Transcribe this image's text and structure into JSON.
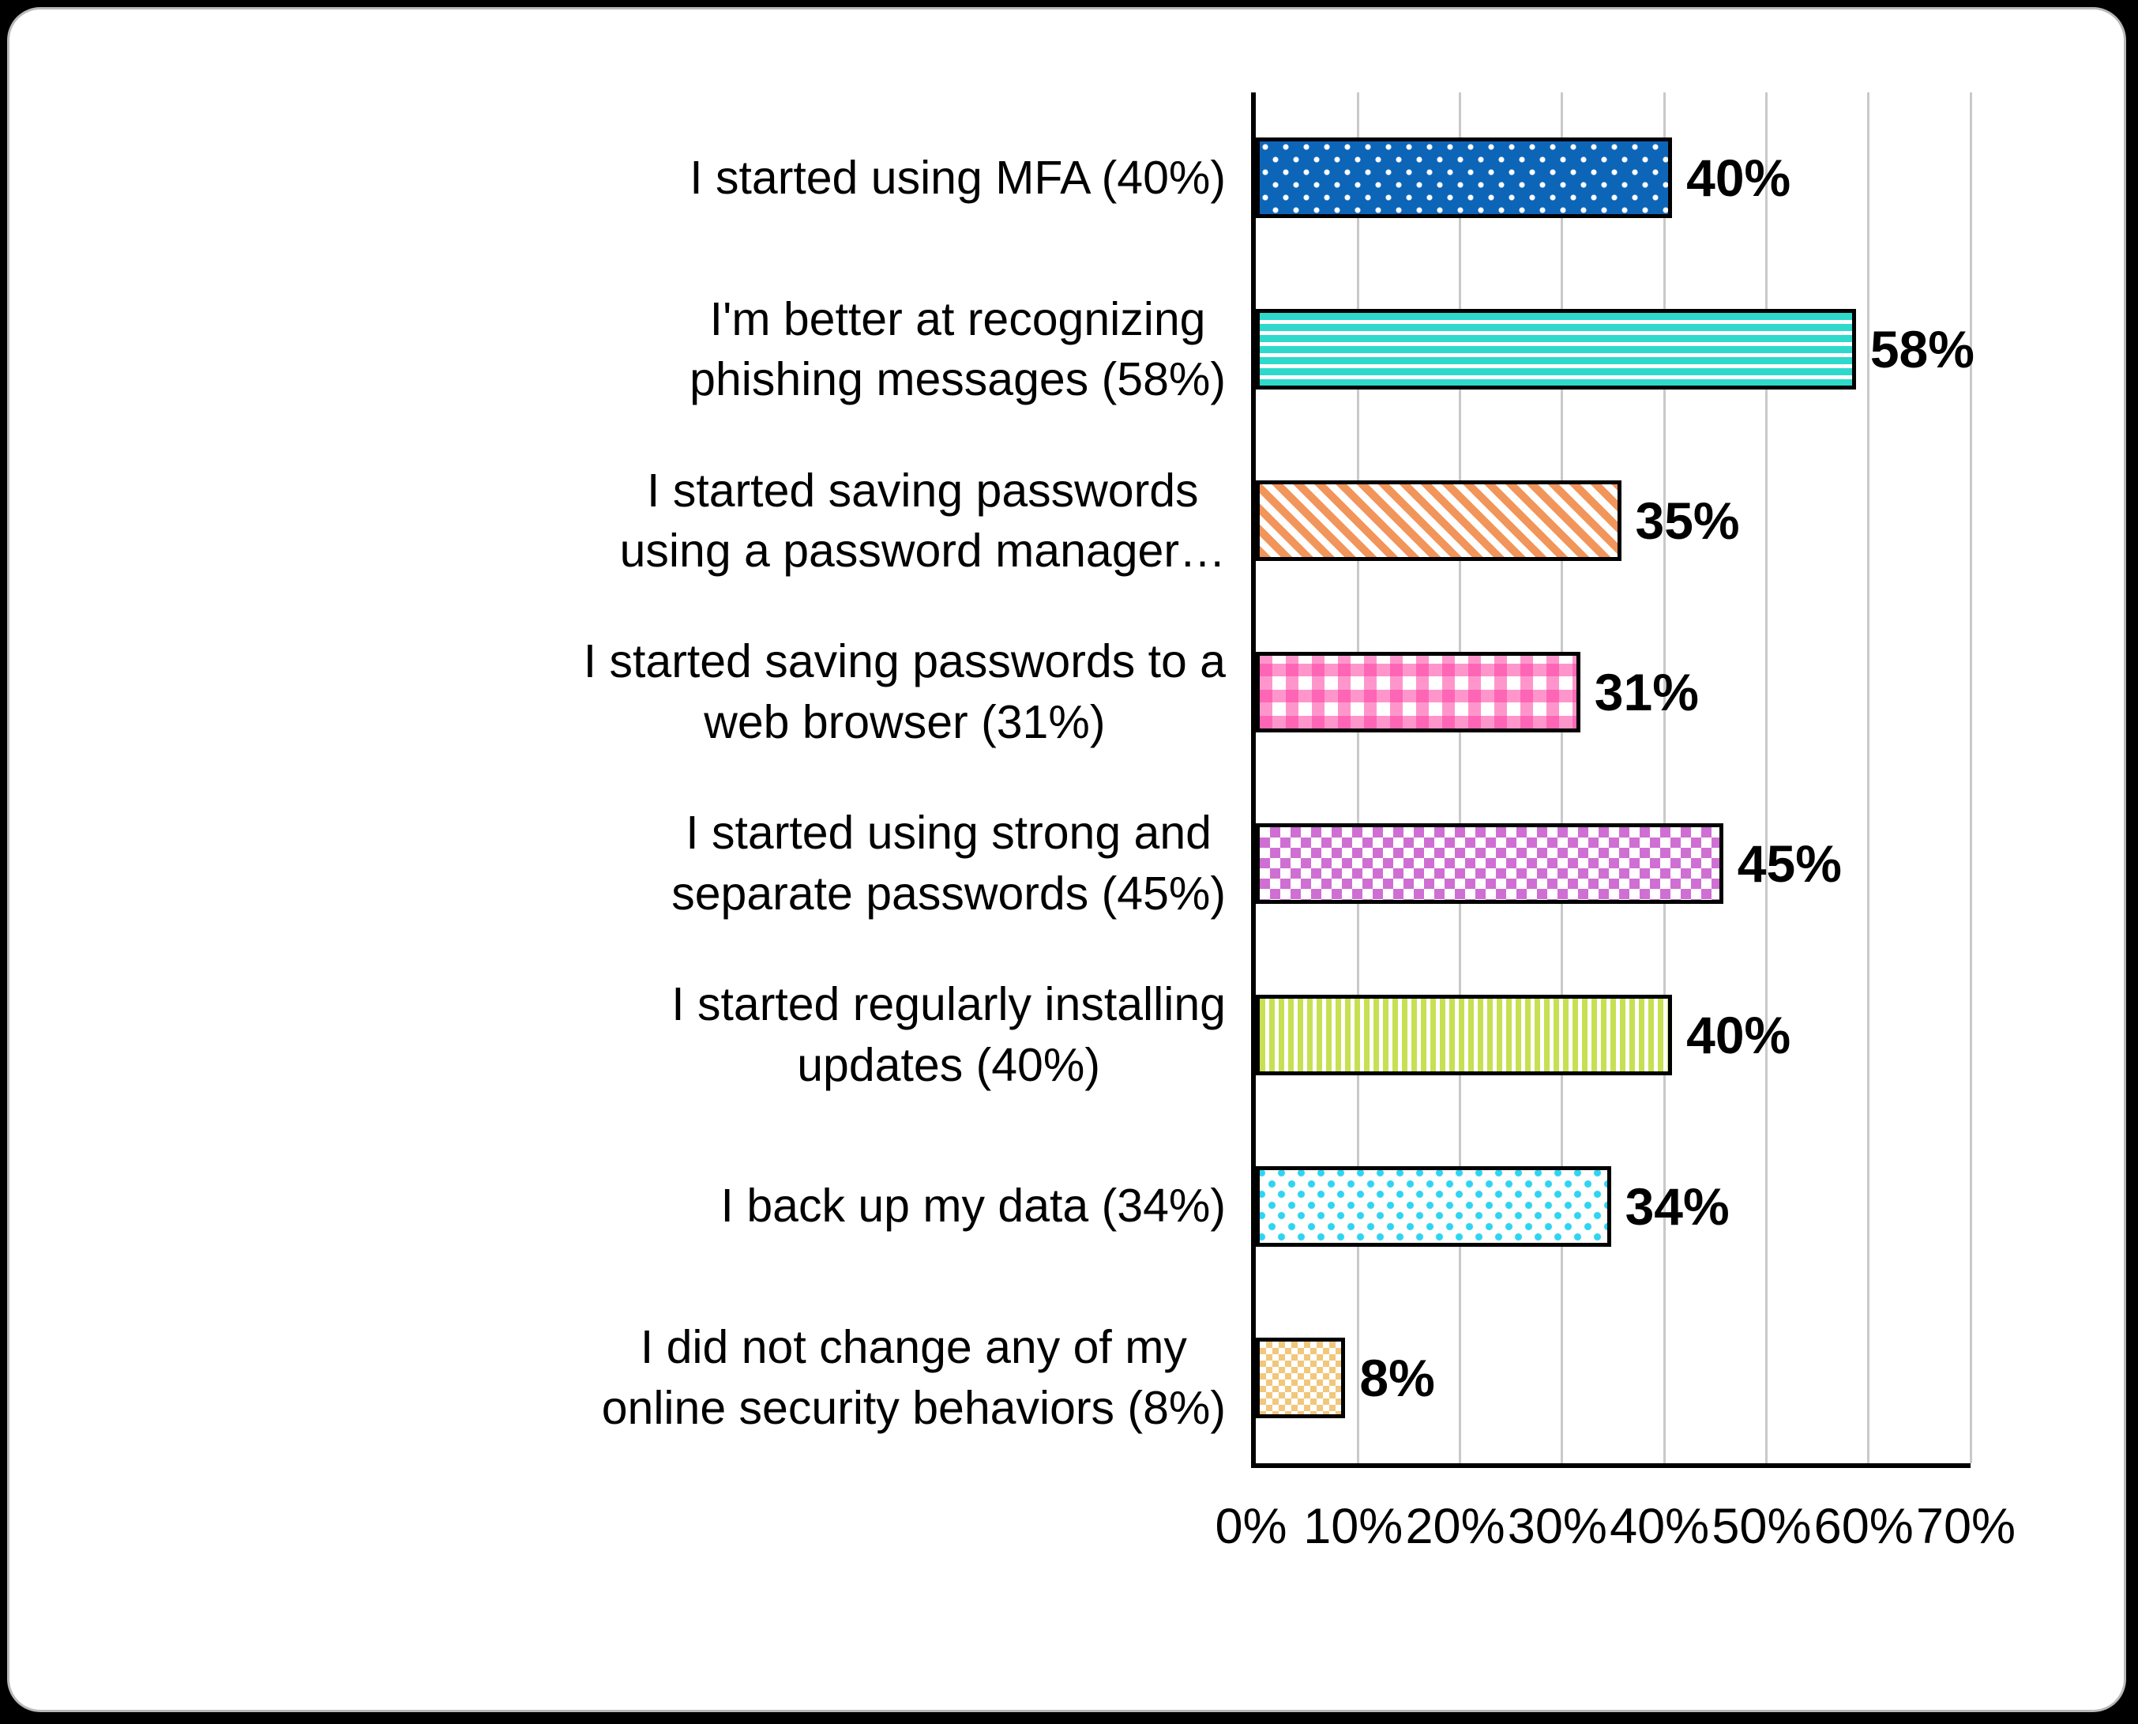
{
  "chart_data": {
    "type": "bar",
    "orientation": "horizontal",
    "title": "",
    "categories": [
      "I started using MFA (40%)",
      "I'm better at recognizing\nphishing messages (58%)",
      "I started saving passwords\nusing a password manager…",
      "I started saving passwords to a\nweb browser (31%)",
      "I started using strong and\nseparate passwords (45%)",
      "I started regularly installing\nupdates (40%)",
      "I back up my data (34%)",
      "I did not change any of my\nonline security behaviors (8%)"
    ],
    "values": [
      40,
      58,
      35,
      31,
      45,
      40,
      34,
      8
    ],
    "data_labels": [
      "40%",
      "58%",
      "35%",
      "31%",
      "45%",
      "40%",
      "34%",
      "8%"
    ],
    "x_ticks": {
      "labels": [
        "0%",
        "10%",
        "20%",
        "30%",
        "40%",
        "50%",
        "60%",
        "70%"
      ],
      "values": [
        0,
        10,
        20,
        30,
        40,
        50,
        60,
        70
      ]
    },
    "xlim": [
      0,
      70
    ],
    "grid": "vertical",
    "legend": "none",
    "bar_styles": [
      {
        "pattern": "blue-white-dots",
        "color": "#0d65b8"
      },
      {
        "pattern": "turquoise-horizontal-stripes",
        "color": "#2ed9cb"
      },
      {
        "pattern": "orange-diagonal-stripes",
        "color": "#f2955a"
      },
      {
        "pattern": "pink-gingham",
        "color": "#fd3fa2"
      },
      {
        "pattern": "orchid-checkerboard",
        "color": "#cf6fd3"
      },
      {
        "pattern": "yellowgreen-vertical-stripes",
        "color": "#c6e052"
      },
      {
        "pattern": "cyan-confetti-dots",
        "color": "#2fd4f2"
      },
      {
        "pattern": "tan-fine-checker",
        "color": "#f1c77c"
      }
    ]
  },
  "colors": {
    "page_background": "#000000",
    "card_background": "#ffffff",
    "card_border": "#b9b9b9",
    "axis": "#000000",
    "gridline": "#c9c9c9",
    "text": "#000000"
  }
}
